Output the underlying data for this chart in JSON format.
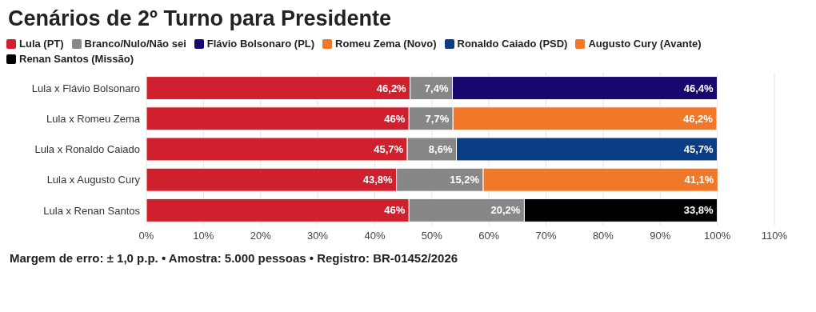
{
  "chart_data": {
    "type": "bar",
    "orientation": "horizontal",
    "stacked": true,
    "title": "Cenários de 2º Turno para Presidente",
    "categories": [
      "Lula x Flávio Bolsonaro",
      "Lula x Romeu Zema",
      "Lula x Ronaldo Caiado",
      "Lula x Augusto Cury",
      "Lula x Renan Santos"
    ],
    "series": [
      {
        "name": "Lula (PT)",
        "color": "#d0202e",
        "values": [
          46.2,
          46,
          45.7,
          43.8,
          46
        ],
        "value_labels": [
          "46,2%",
          "46%",
          "45,7%",
          "43,8%",
          "46%"
        ]
      },
      {
        "name": "Branco/Nulo/Não sei",
        "color": "#878787",
        "values": [
          7.4,
          7.7,
          8.6,
          15.2,
          20.2
        ],
        "value_labels": [
          "7,4%",
          "7,7%",
          "8,6%",
          "15,2%",
          "20,2%"
        ]
      },
      {
        "name": "Flávio Bolsonaro (PL)",
        "color": "#17076e",
        "values": [
          46.4,
          null,
          null,
          null,
          null
        ],
        "value_labels": [
          "46,4%",
          null,
          null,
          null,
          null
        ]
      },
      {
        "name": "Romeu Zema (Novo)",
        "color": "#f07828",
        "values": [
          null,
          46.2,
          null,
          null,
          null
        ],
        "value_labels": [
          null,
          "46,2%",
          null,
          null,
          null
        ]
      },
      {
        "name": "Ronaldo Caiado (PSD)",
        "color": "#0b3d84",
        "values": [
          null,
          null,
          45.7,
          null,
          null
        ],
        "value_labels": [
          null,
          null,
          "45,7%",
          null,
          null
        ]
      },
      {
        "name": "Augusto Cury (Avante)",
        "color": "#f07828",
        "values": [
          null,
          null,
          null,
          41.1,
          null
        ],
        "value_labels": [
          null,
          null,
          null,
          "41,1%",
          null
        ]
      },
      {
        "name": "Renan Santos (Missão)",
        "color": "#000000",
        "values": [
          null,
          null,
          null,
          null,
          33.8
        ],
        "value_labels": [
          null,
          null,
          null,
          null,
          "33,8%"
        ]
      }
    ],
    "xlim": [
      0,
      110
    ],
    "xticks": [
      {
        "value": 0,
        "label": "0%"
      },
      {
        "value": 10,
        "label": "10%"
      },
      {
        "value": 20,
        "label": "20%"
      },
      {
        "value": 30,
        "label": "30%"
      },
      {
        "value": 40,
        "label": "40%"
      },
      {
        "value": 50,
        "label": "50%"
      },
      {
        "value": 60,
        "label": "60%"
      },
      {
        "value": 70,
        "label": "70%"
      },
      {
        "value": 80,
        "label": "80%"
      },
      {
        "value": 90,
        "label": "90%"
      },
      {
        "value": 100,
        "label": "100%"
      },
      {
        "value": 110,
        "label": "110%"
      }
    ],
    "grid": "x",
    "legend": "top left",
    "annotations": [
      "Margem de erro: ± 1,0 p.p. • Amostra: 5.000 pessoas • Registro: BR-01452/2026"
    ]
  }
}
